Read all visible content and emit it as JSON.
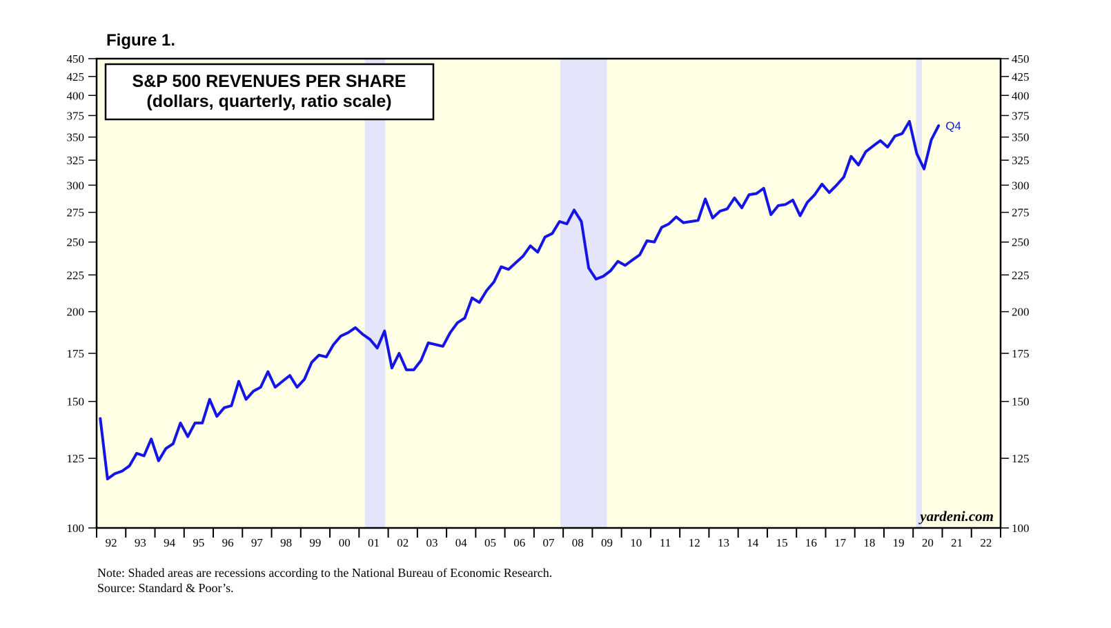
{
  "figure_label": "Figure 1.",
  "watermark": "yardeni.com",
  "note": "Note: Shaded areas are recessions according to the National Bureau of Economic Research.",
  "source": "Source: Standard & Poor’s.",
  "colors": {
    "plot_background": "#ffffe6",
    "recession_shade": "#e4e4fb",
    "series_line": "#1414e6"
  },
  "chart_data": {
    "type": "line",
    "title": "S&P 500 REVENUES PER SHARE",
    "subtitle": "(dollars, quarterly, ratio scale)",
    "scale": "log",
    "ylim": [
      100,
      450
    ],
    "xlim": [
      1992.0,
      2023.0
    ],
    "y_ticks": [
      100,
      125,
      150,
      175,
      200,
      225,
      250,
      275,
      300,
      325,
      350,
      375,
      400,
      425,
      450
    ],
    "y_tick_labels": [
      "100",
      "125",
      "150",
      "175",
      "200",
      "225",
      "250",
      "275",
      "300",
      "325",
      "350",
      "375",
      "400",
      "425",
      "450"
    ],
    "x_tick_labels": [
      "92",
      "93",
      "94",
      "95",
      "96",
      "97",
      "98",
      "99",
      "00",
      "01",
      "02",
      "03",
      "04",
      "05",
      "06",
      "07",
      "08",
      "09",
      "10",
      "11",
      "12",
      "13",
      "14",
      "15",
      "16",
      "17",
      "18",
      "19",
      "20",
      "21",
      "22"
    ],
    "recessions": [
      [
        2001.2,
        2001.9
      ],
      [
        2007.9,
        2009.5
      ],
      [
        2020.1,
        2020.3
      ]
    ],
    "end_label": "Q4",
    "legend": "none",
    "grid": false,
    "series": [
      {
        "x_start": "1992 Q1",
        "quarters_per_year": 4,
        "values": [
          142,
          117,
          119,
          120,
          122,
          127,
          126,
          133,
          124,
          129,
          131,
          140,
          134,
          140,
          140,
          151,
          143,
          147,
          148,
          160,
          151,
          155,
          157,
          165,
          157,
          160,
          163,
          157,
          161,
          170,
          174,
          173,
          180,
          185,
          187,
          190,
          186,
          183,
          178,
          188,
          167,
          175,
          166,
          166,
          171,
          181,
          180,
          179,
          187,
          193,
          196,
          209,
          206,
          214,
          220,
          231,
          229,
          234,
          239,
          247,
          242,
          254,
          257,
          267,
          265,
          277,
          267,
          230,
          222,
          224,
          228,
          235,
          232,
          236,
          240,
          251,
          250,
          262,
          265,
          271,
          266,
          267,
          268,
          287,
          270,
          276,
          278,
          288,
          279,
          291,
          292,
          297,
          273,
          281,
          282,
          286,
          272,
          284,
          291,
          301,
          293,
          300,
          308,
          329,
          320,
          334,
          340,
          346,
          339,
          351,
          354,
          368,
          332,
          316,
          347,
          363
        ]
      }
    ]
  }
}
